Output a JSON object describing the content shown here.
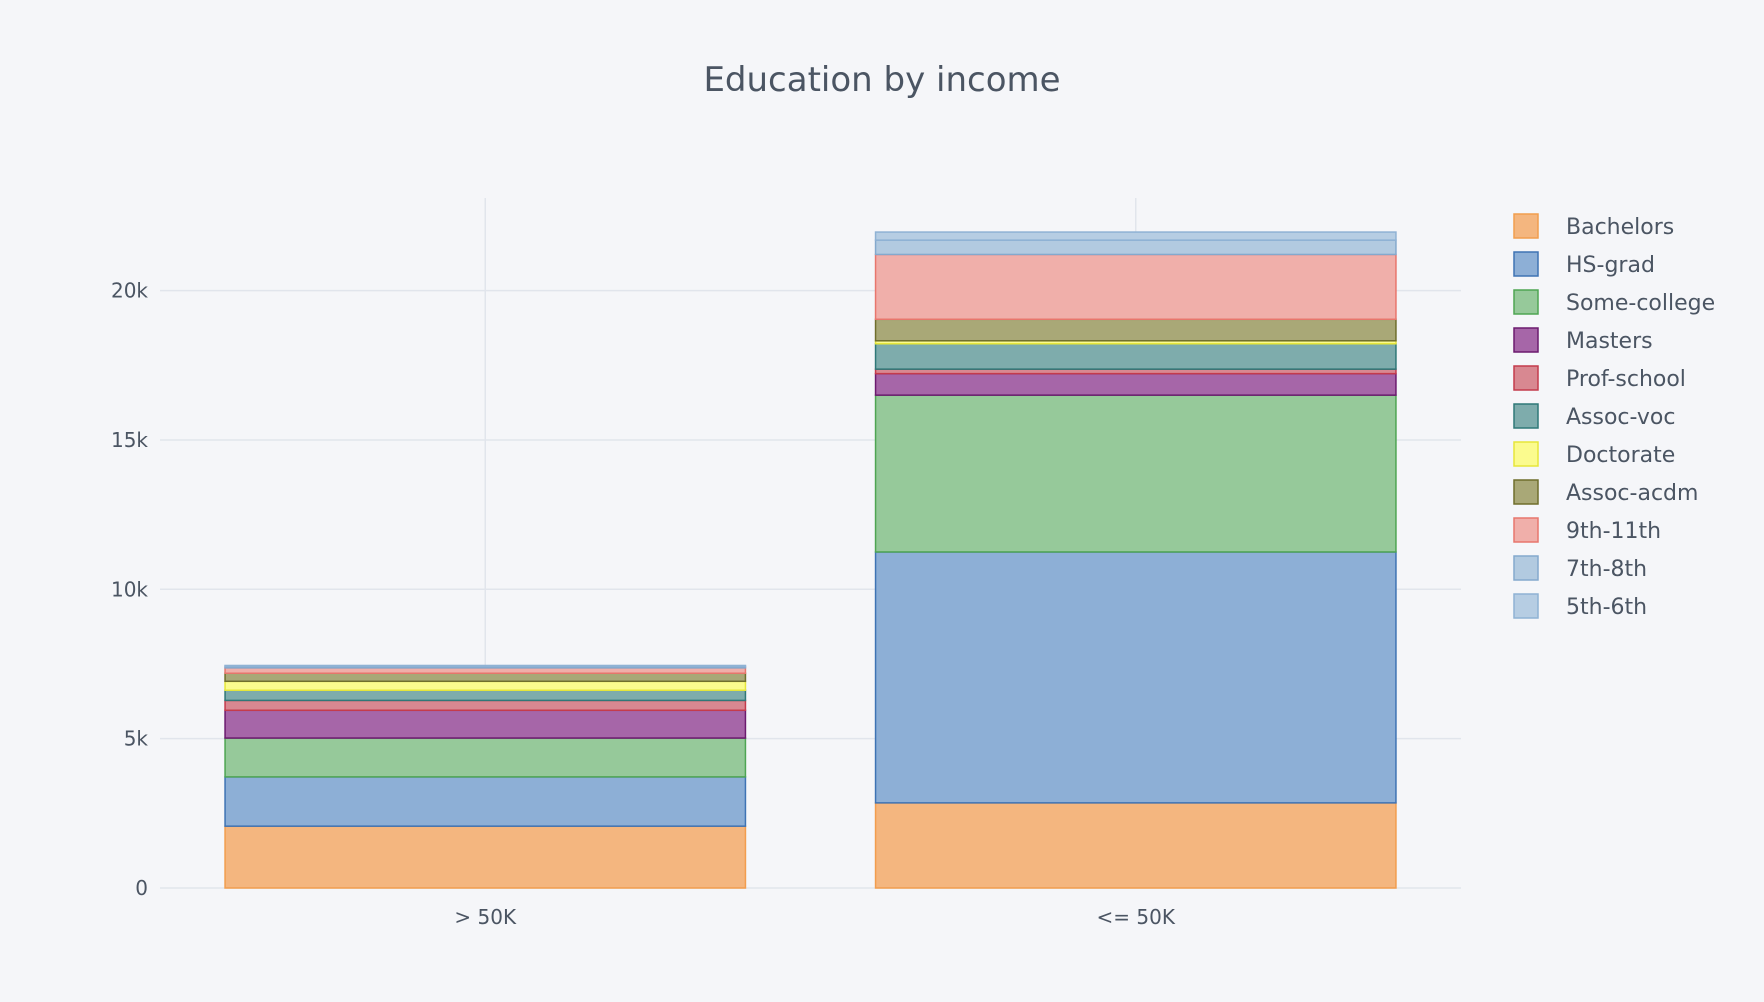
{
  "chart_data": {
    "type": "bar",
    "stacked": true,
    "title": "Education by income",
    "xlabel": "",
    "ylabel": "",
    "categories": [
      "> 50K",
      "<= 50K"
    ],
    "ylim": [
      0,
      23100
    ],
    "yticks": [
      0,
      5000,
      10000,
      15000,
      20000
    ],
    "ytick_labels": [
      "0",
      "5k",
      "10k",
      "15k",
      "20k"
    ],
    "grid": true,
    "legend_position": "right",
    "series": [
      {
        "name": "Bachelors",
        "values": [
          2070,
          2850
        ],
        "fill": "#f4b67f",
        "stroke": "#f29d4e"
      },
      {
        "name": "HS-grad",
        "values": [
          1650,
          8400
        ],
        "fill": "#8dafd6",
        "stroke": "#3e73b4"
      },
      {
        "name": "Some-college",
        "values": [
          1300,
          5250
        ],
        "fill": "#96c99a",
        "stroke": "#4ea553"
      },
      {
        "name": "Masters",
        "values": [
          930,
          720
        ],
        "fill": "#a666a8",
        "stroke": "#6c1a6f"
      },
      {
        "name": "Prof-school",
        "values": [
          330,
          150
        ],
        "fill": "#d88891",
        "stroke": "#c43b4c"
      },
      {
        "name": "Assoc-voc",
        "values": [
          340,
          850
        ],
        "fill": "#7eacac",
        "stroke": "#2f7878"
      },
      {
        "name": "Doctorate",
        "values": [
          300,
          100
        ],
        "fill": "#fbfb8e",
        "stroke": "#e6e63a"
      },
      {
        "name": "Assoc-acdm",
        "values": [
          270,
          720
        ],
        "fill": "#a9a877",
        "stroke": "#6f6e2c"
      },
      {
        "name": "9th-11th",
        "values": [
          180,
          2170
        ],
        "fill": "#f0afaa",
        "stroke": "#e8766d"
      },
      {
        "name": "7th-8th",
        "values": [
          50,
          480
        ],
        "fill": "#b2cae0",
        "stroke": "#84a9cd"
      },
      {
        "name": "5th-6th",
        "values": [
          30,
          270
        ],
        "fill": "#b6cde3",
        "stroke": "#8fb2d4"
      }
    ]
  }
}
